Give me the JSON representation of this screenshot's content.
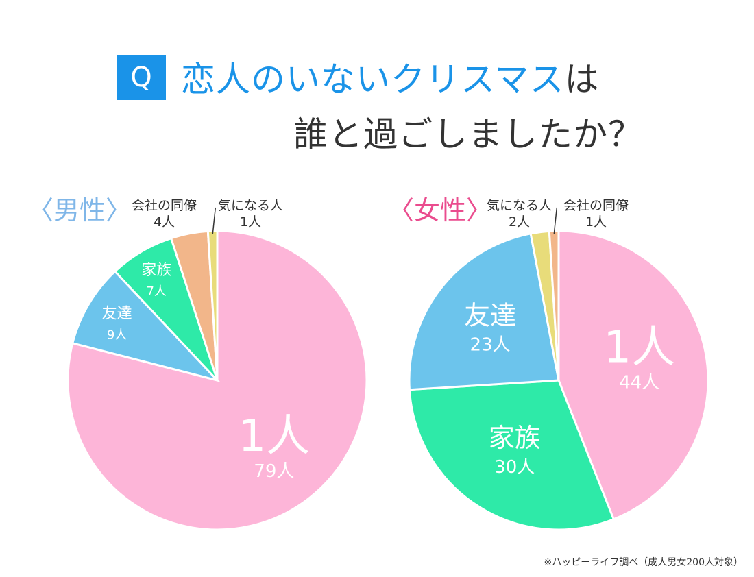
{
  "header": {
    "q_badge": "Q",
    "title_line1_main": "恋人のいないクリスマス",
    "title_line1_tail": "は",
    "title_line2": "誰と過ごしましたか？"
  },
  "colors": {
    "alone": "#fdb5d8",
    "friends": "#6cc4ec",
    "family": "#2eeaa8",
    "coworker": "#f2b68a",
    "crush": "#e8dc7a",
    "accent": "#1a93e8"
  },
  "source_note": "※ハッピーライフ調べ（成人男女200人対象）",
  "chart_data": [
    {
      "type": "pie",
      "title": "〈男性〉",
      "slices": [
        {
          "label": "1人",
          "count_label": "79人",
          "value": 79,
          "color_key": "alone"
        },
        {
          "label": "友達",
          "count_label": "9人",
          "value": 9,
          "color_key": "friends"
        },
        {
          "label": "家族",
          "count_label": "7人",
          "value": 7,
          "color_key": "family"
        },
        {
          "label": "会社の同僚",
          "count_label": "4人",
          "value": 4,
          "color_key": "coworker"
        },
        {
          "label": "気になる人",
          "count_label": "1人",
          "value": 1,
          "color_key": "crush"
        }
      ]
    },
    {
      "type": "pie",
      "title": "〈女性〉",
      "slices": [
        {
          "label": "1人",
          "count_label": "44人",
          "value": 44,
          "color_key": "alone"
        },
        {
          "label": "家族",
          "count_label": "30人",
          "value": 30,
          "color_key": "family"
        },
        {
          "label": "友達",
          "count_label": "23人",
          "value": 23,
          "color_key": "friends"
        },
        {
          "label": "気になる人",
          "count_label": "2人",
          "value": 2,
          "color_key": "crush"
        },
        {
          "label": "会社の同僚",
          "count_label": "1人",
          "value": 1,
          "color_key": "coworker"
        }
      ]
    }
  ]
}
